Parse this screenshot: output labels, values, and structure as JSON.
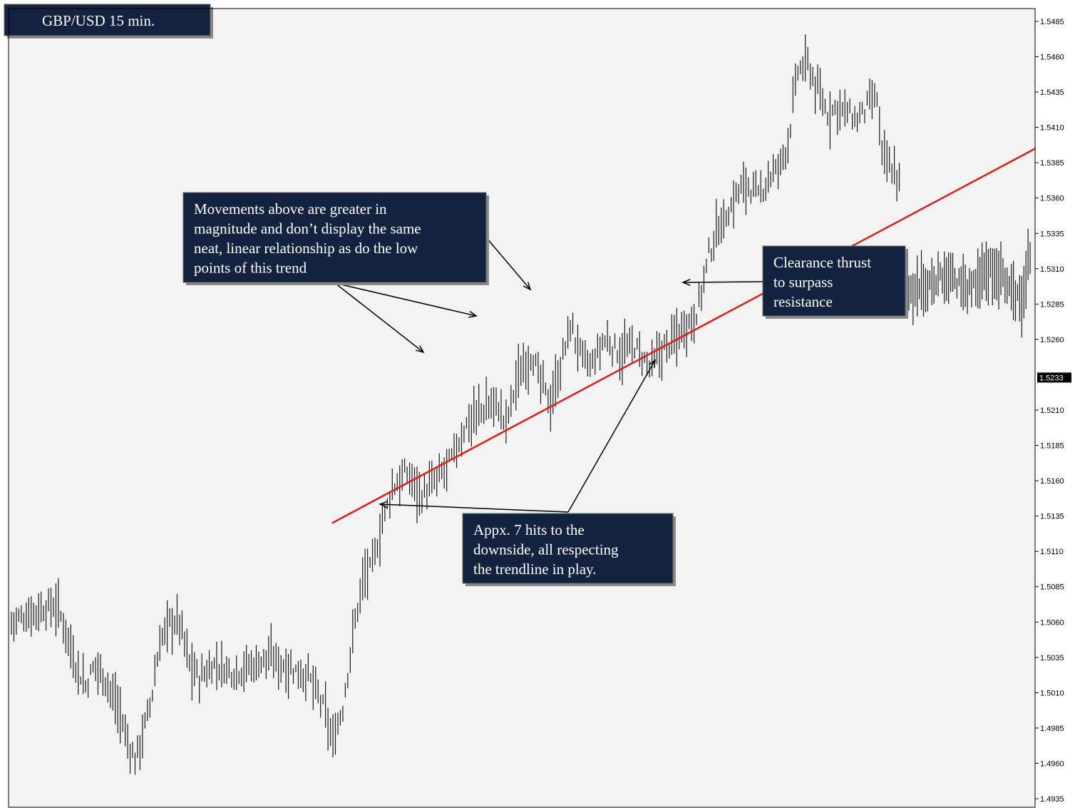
{
  "title": "GBP/USD 15 min.",
  "colors": {
    "background": "#f3f3f3",
    "bars": "#1a1a1a",
    "trendline": "#e41b17",
    "box_fill": "#13233f",
    "box_text": "#ffffff",
    "arrows": "#000000"
  },
  "annotations": {
    "movements": [
      "Movements above are greater in",
      "magnitude and don’t display the same",
      "neat, linear relationship as do the low",
      "points of this trend"
    ],
    "clearance": [
      "Clearance thrust",
      "to surpass",
      "resistance"
    ],
    "hits": [
      "Appx. 7 hits to the",
      "downside, all respecting",
      "the trendline in play."
    ]
  },
  "chart_data": {
    "type": "ohlc",
    "title": "GBP/USD 15 min.",
    "ylim": [
      1.4935,
      1.5485
    ],
    "y_ticks": [
      "1.5485",
      "1.5460",
      "1.5435",
      "1.5410",
      "1.5385",
      "1.5360",
      "1.5335",
      "1.5310",
      "1.5285",
      "1.5260",
      "1.5210",
      "1.5185",
      "1.5160",
      "1.5135",
      "1.5110",
      "1.5085",
      "1.5060",
      "1.5035",
      "1.5010",
      "1.4985",
      "1.4960",
      "1.4935"
    ],
    "current_price": "1.5233",
    "bar_count": 360,
    "price_path": [
      [
        0,
        1.506
      ],
      [
        10,
        1.5068
      ],
      [
        18,
        1.5072
      ],
      [
        22,
        1.5055
      ],
      [
        26,
        1.503
      ],
      [
        30,
        1.5015
      ],
      [
        34,
        1.503
      ],
      [
        38,
        1.502
      ],
      [
        44,
        1.4995
      ],
      [
        47,
        1.4975
      ],
      [
        50,
        1.4962
      ],
      [
        53,
        1.498
      ],
      [
        56,
        1.5
      ],
      [
        60,
        1.5045
      ],
      [
        64,
        1.506
      ],
      [
        68,
        1.506
      ],
      [
        72,
        1.503
      ],
      [
        76,
        1.502
      ],
      [
        82,
        1.503
      ],
      [
        90,
        1.5025
      ],
      [
        98,
        1.503
      ],
      [
        104,
        1.5035
      ],
      [
        112,
        1.5028
      ],
      [
        120,
        1.5022
      ],
      [
        126,
        1.5
      ],
      [
        130,
        1.4975
      ],
      [
        134,
        1.5
      ],
      [
        138,
        1.505
      ],
      [
        142,
        1.509
      ],
      [
        146,
        1.51
      ],
      [
        150,
        1.513
      ],
      [
        154,
        1.5155
      ],
      [
        160,
        1.5165
      ],
      [
        166,
        1.515
      ],
      [
        172,
        1.516
      ],
      [
        178,
        1.5175
      ],
      [
        184,
        1.52
      ],
      [
        190,
        1.521
      ],
      [
        196,
        1.5215
      ],
      [
        200,
        1.52
      ],
      [
        204,
        1.523
      ],
      [
        210,
        1.525
      ],
      [
        214,
        1.523
      ],
      [
        218,
        1.5215
      ],
      [
        222,
        1.524
      ],
      [
        226,
        1.527
      ],
      [
        230,
        1.525
      ],
      [
        234,
        1.524
      ],
      [
        240,
        1.526
      ],
      [
        246,
        1.525
      ],
      [
        252,
        1.5255
      ],
      [
        258,
        1.524
      ],
      [
        262,
        1.525
      ],
      [
        268,
        1.526
      ],
      [
        272,
        1.527
      ],
      [
        276,
        1.5275
      ],
      [
        278,
        1.5285
      ],
      [
        282,
        1.532
      ],
      [
        286,
        1.534
      ],
      [
        290,
        1.535
      ],
      [
        294,
        1.5365
      ],
      [
        298,
        1.537
      ],
      [
        302,
        1.536
      ],
      [
        306,
        1.5375
      ],
      [
        310,
        1.538
      ],
      [
        314,
        1.54
      ],
      [
        318,
        1.545
      ],
      [
        322,
        1.5455
      ],
      [
        326,
        1.5435
      ],
      [
        330,
        1.542
      ],
      [
        334,
        1.5425
      ],
      [
        338,
        1.542
      ],
      [
        342,
        1.5415
      ],
      [
        346,
        1.5425
      ],
      [
        350,
        1.543
      ],
      [
        352,
        1.539
      ],
      [
        356,
        1.538
      ],
      [
        360,
        1.537
      ]
    ],
    "trendline": {
      "start": [
        0.315,
        1.513
      ],
      "end": [
        1.0,
        1.5395
      ]
    },
    "bars_tail": [
      [
        0,
        1.529
      ],
      [
        10,
        1.53
      ],
      [
        20,
        1.5305
      ],
      [
        30,
        1.5295
      ],
      [
        40,
        1.531
      ],
      [
        50,
        1.53
      ],
      [
        55,
        1.528
      ],
      [
        58,
        1.532
      ]
    ]
  }
}
